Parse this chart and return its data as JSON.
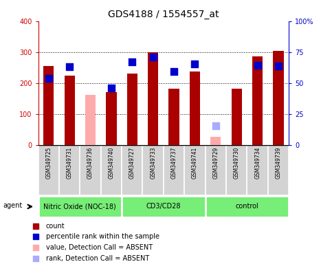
{
  "title": "GDS4188 / 1554557_at",
  "samples": [
    "GSM349725",
    "GSM349731",
    "GSM349736",
    "GSM349740",
    "GSM349727",
    "GSM349733",
    "GSM349737",
    "GSM349741",
    "GSM349729",
    "GSM349730",
    "GSM349734",
    "GSM349739"
  ],
  "group_labels": [
    "Nitric Oxide (NOC-18)",
    "CD3/CD28",
    "control"
  ],
  "group_borders": [
    0,
    4,
    8,
    12
  ],
  "bar_values": [
    255,
    225,
    null,
    172,
    230,
    299,
    183,
    238,
    null,
    183,
    287,
    303
  ],
  "bar_absent_values": [
    null,
    null,
    162,
    null,
    null,
    null,
    null,
    null,
    28,
    null,
    null,
    null
  ],
  "bar_colors_present": "#aa0000",
  "bar_colors_absent": "#ffaaaa",
  "dot_values": [
    215,
    252,
    null,
    185,
    268,
    285,
    238,
    263,
    null,
    null,
    258,
    255
  ],
  "dot_absent_values": [
    null,
    null,
    null,
    null,
    null,
    null,
    null,
    null,
    62,
    null,
    null,
    null
  ],
  "dot_color_present": "#0000cc",
  "dot_color_absent": "#aaaaff",
  "ylim": [
    0,
    400
  ],
  "yticks": [
    0,
    100,
    200,
    300,
    400
  ],
  "y2ticks": [
    0,
    25,
    50,
    75,
    100
  ],
  "y2ticklabels": [
    "0",
    "25",
    "50",
    "75",
    "100%"
  ],
  "bar_width": 0.5,
  "dot_size": 45,
  "title_fontsize": 10,
  "legend_fontsize": 7,
  "tick_fontsize": 7,
  "sample_fontsize": 5.5,
  "group_fontsize": 7,
  "axis_color_left": "#cc0000",
  "axis_color_right": "#0000cc",
  "background_color": "#ffffff",
  "xticklabel_bg": "#d3d3d3",
  "group_label_bg": "#77ee77",
  "agent_label": "agent",
  "legend_items": [
    {
      "color": "#aa0000",
      "label": "count"
    },
    {
      "color": "#0000cc",
      "label": "percentile rank within the sample"
    },
    {
      "color": "#ffaaaa",
      "label": "value, Detection Call = ABSENT"
    },
    {
      "color": "#aaaaff",
      "label": "rank, Detection Call = ABSENT"
    }
  ]
}
